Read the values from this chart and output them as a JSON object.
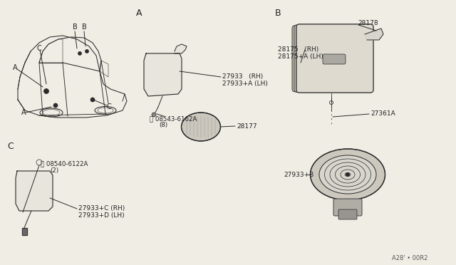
{
  "bg_color": "#f0ede4",
  "line_color": "#2a2a2a",
  "text_color": "#222222",
  "figure_width": 6.4,
  "figure_height": 3.72,
  "labels": {
    "section_A": "A",
    "section_B": "B",
    "section_C": "C",
    "part_27933_RH": "27933   (RH)",
    "part_27933A_LH": "27933+A (LH)",
    "part_08543_6162A": "S 08543-6162A",
    "part_08543_qty": "(8)",
    "part_28177": "28177",
    "part_28178": "28178",
    "part_28175_RH": "28175   (RH)",
    "part_28175A_LH": "28175+A (LH)",
    "part_27361A": "27361A",
    "part_27933B": "27933+B",
    "part_08540_6122A": "S 08540-6122A",
    "part_08540_qty": "(2)",
    "part_27933C_RH": "27933+C (RH)",
    "part_27933D_LH": "27933+D (LH)",
    "footer": "A28' • 00R2"
  }
}
